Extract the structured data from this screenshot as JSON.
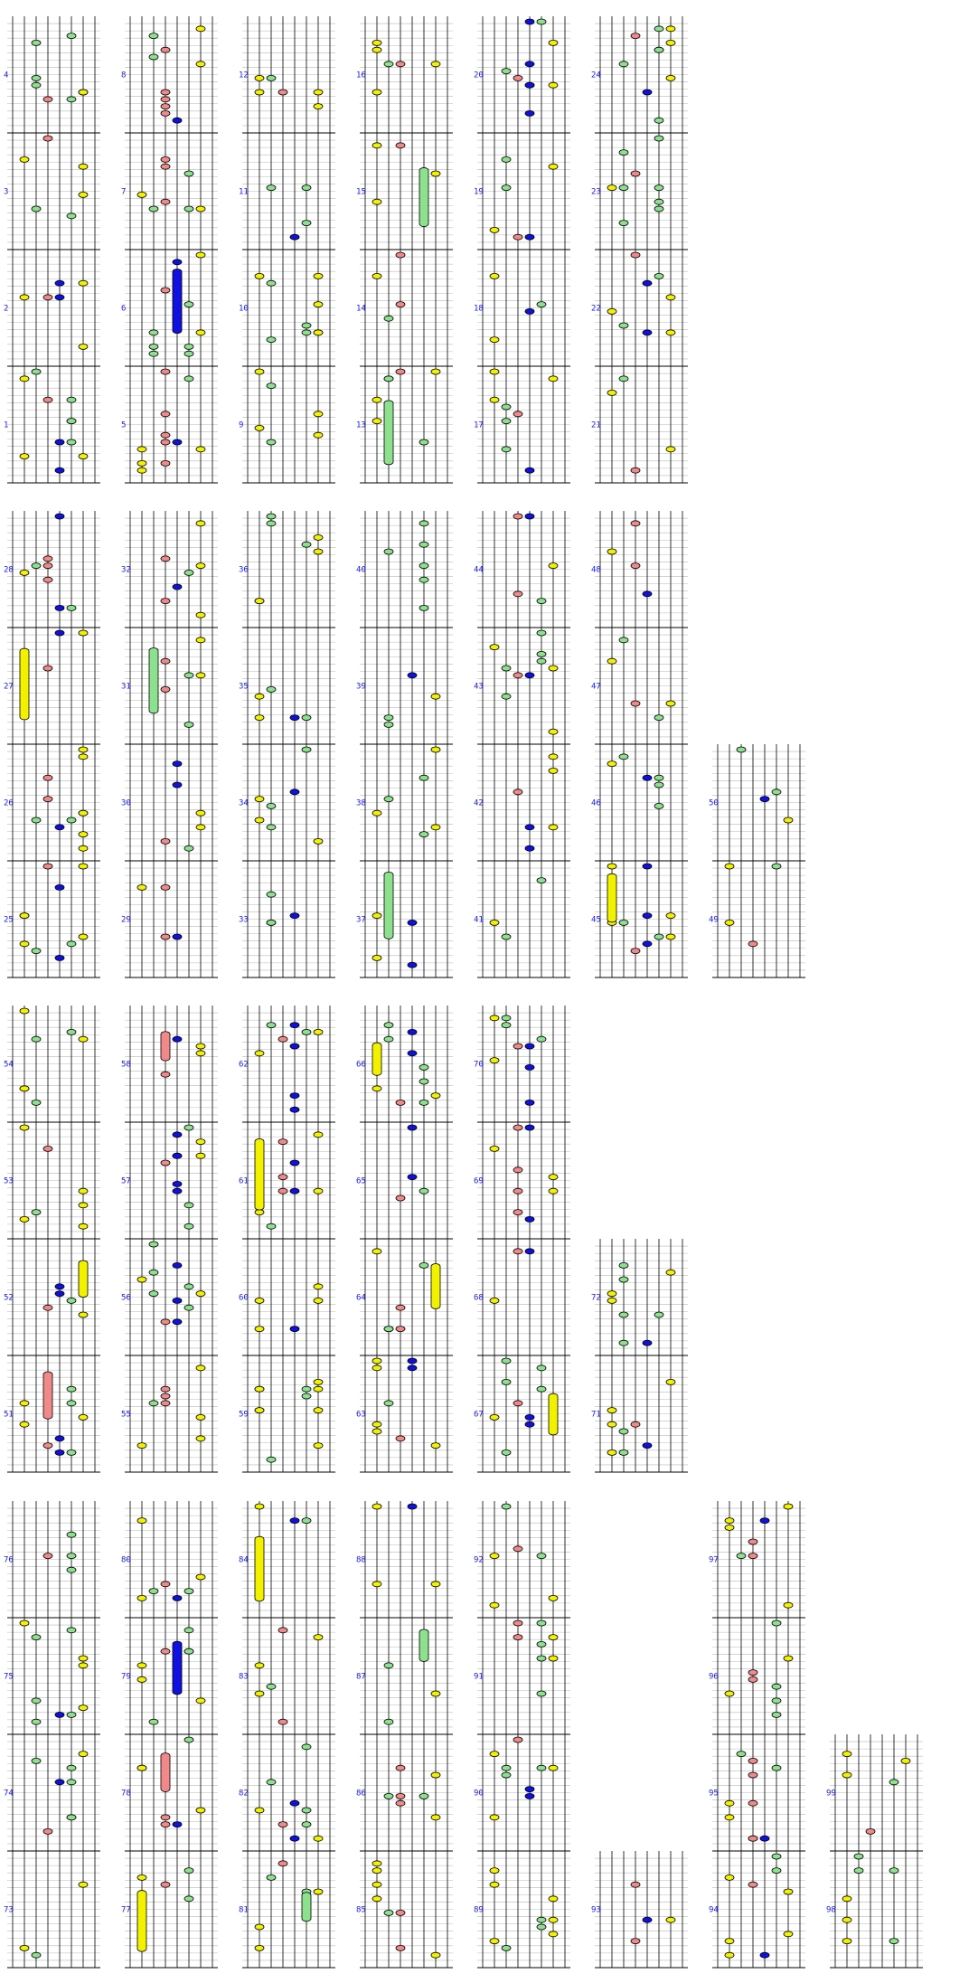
{
  "title": "",
  "measure_numbers": {
    "rows": [
      [
        "4",
        "8",
        "12",
        "16",
        "20",
        "24"
      ],
      [
        "3",
        "7",
        "11",
        "15",
        "19",
        "23"
      ],
      [
        "2",
        "6",
        "10",
        "14",
        "18",
        "22"
      ],
      [
        "1",
        "5",
        "9",
        "13",
        "17",
        "21"
      ],
      [
        "28",
        "32",
        "36",
        "40",
        "44",
        "48"
      ],
      [
        "27",
        "31",
        "35",
        "39",
        "43",
        "47"
      ],
      [
        "26",
        "30",
        "34",
        "38",
        "42",
        "46",
        "50"
      ],
      [
        "25",
        "29",
        "33",
        "37",
        "41",
        "45",
        "49"
      ],
      [
        "54",
        "58",
        "62",
        "66",
        "70"
      ],
      [
        "53",
        "57",
        "61",
        "65",
        "69"
      ],
      [
        "52",
        "56",
        "60",
        "64",
        "68",
        "72"
      ],
      [
        "51",
        "55",
        "59",
        "63",
        "67",
        "71"
      ],
      [
        "76",
        "80",
        "84",
        "88",
        "92",
        "",
        "97"
      ],
      [
        "75",
        "79",
        "83",
        "87",
        "91",
        "",
        "96"
      ],
      [
        "74",
        "78",
        "82",
        "86",
        "90",
        "",
        "95",
        "99"
      ],
      [
        "73",
        "77",
        "81",
        "85",
        "89",
        "93",
        "94",
        "98"
      ]
    ]
  },
  "colors": {
    "background": "#ffffff",
    "grid_line": "#000000",
    "fret_line": "#b8b8b8",
    "label": "#1a1aff",
    "note_red": "#f08a8a",
    "note_green": "#8de08d",
    "note_blue": "#1010e0",
    "note_yellow": "#f2f200",
    "note_white": "#ffffff"
  },
  "lane_colors": [
    "white",
    "yellow",
    "green",
    "red",
    "blue",
    "green",
    "yellow",
    "white"
  ]
}
